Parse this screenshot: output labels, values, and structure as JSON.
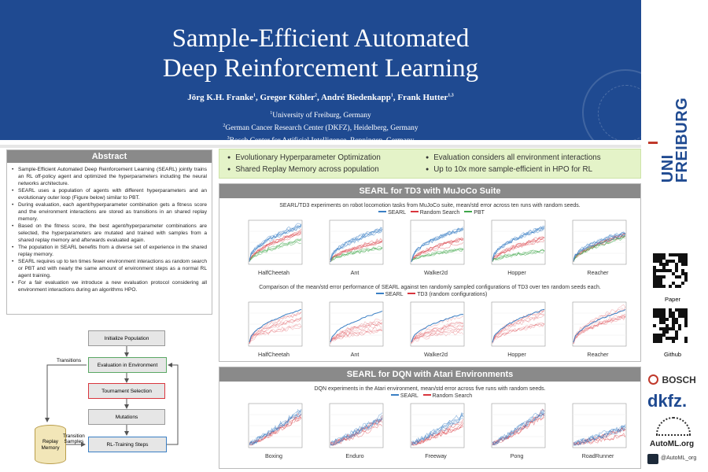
{
  "header": {
    "title_line1": "Sample-Efficient Automated",
    "title_line2": "Deep Reinforcement Learning",
    "authors": [
      {
        "name": "Jörg K.H. Franke",
        "sup": "1"
      },
      {
        "name": "Gregor Köhler",
        "sup": "2"
      },
      {
        "name": "André Biedenkapp",
        "sup": "1"
      },
      {
        "name": "Frank Hutter",
        "sup": "1,3"
      }
    ],
    "affiliations": [
      {
        "sup": "1",
        "text": "University of Freiburg, Germany"
      },
      {
        "sup": "2",
        "text": "German Cancer Research Center (DKFZ), Heidelberg, Germany"
      },
      {
        "sup": "3",
        "text": "Bosch Center for Artificial Intelligence, Renningen, Germany"
      }
    ]
  },
  "logos": {
    "uni_line1": "UNI",
    "uni_line2": "FREIBURG",
    "bosch": "BOSCH",
    "dkfz": "dkfz.",
    "automl": "AutoML.org",
    "twitter": "@AutoML_org",
    "qr1_label": "Paper",
    "qr2_label": "Github"
  },
  "abstract": {
    "heading": "Abstract",
    "items": [
      "Sample-Efficient Automated Deep Reinforcement Learning (SEARL) jointly trains an RL off-policy agent and optimized the hyperparameters including the neural networks architecture.",
      "SEARL uses a population of agents with different hyperparameters and an evolutionary outer loop (Figure below) similar to PBT.",
      "During evaluation, each agent/hyperparameter combination gets a fitness score and the environment interactions are stored as transitions in an shared replay memory.",
      "Based on the fitness score, the best agent/hyperparameter combinations are selected, the hyperparameters are mutated and trained with samples from a shared replay memory and afterwards evaluated again.",
      "The population in SEARL benefits from a diverse set of experience in the shared replay memory.",
      "SEARL requires up to ten times fewer environment interactions as random search or PBT and with nearly the same amount of environment steps as a normal RL agent training.",
      "For a fair evaluation we introduce a new evaluation protocol considering all environment interactions during an algorithms HPO."
    ]
  },
  "diagram": {
    "init": "Initialize Population",
    "eval": "Evaluation in Environment",
    "tournament": "Tournament Selection",
    "mutations": "Mutations",
    "training": "RL-Training Steps",
    "replay_line1": "Replay",
    "replay_line2": "Memory",
    "transitions": "Transitions",
    "transition_samples_line1": "Transition",
    "transition_samples_line2": "Samples"
  },
  "highlights": [
    "Evolutionary Hyperparameter Optimization",
    "Shared Replay Memory across population",
    "Evaluation considers all environment interactions",
    "Up to 10x more sample-efficient in HPO for RL"
  ],
  "td3": {
    "heading": "SEARL for TD3 with MuJoCo Suite",
    "caption1": "SEARL/TD3 experiments on robot locomotion tasks from MuJoCo suite, mean/std error across ten runs with random seeds.",
    "legend1": [
      "SEARL",
      "Random Search",
      "PBT"
    ],
    "envs": [
      "HalfCheetah",
      "Ant",
      "Walker2d",
      "Hopper",
      "Reacher"
    ],
    "caption2": "Comparison of the mean/std error performance of SEARL against ten randomly sampled configurations of TD3 over ten random seeds each.",
    "legend2": [
      "SEARL",
      "TD3 (random configurations)"
    ]
  },
  "dqn": {
    "heading": "SEARL for DQN with Atari Environments",
    "caption": "DQN experiments in the Atari environment, mean/std error across five runs with random seeds.",
    "legend": [
      "SEARL",
      "Random Search"
    ],
    "envs": [
      "Boxing",
      "Enduro",
      "Freeway",
      "Pong",
      "RoadRunner"
    ]
  },
  "colors": {
    "header": "#1f4a91",
    "searl": "#3a7fc4",
    "random": "#d9363e",
    "pbt": "#3fa64a",
    "highlight": "#e4f3c8"
  }
}
